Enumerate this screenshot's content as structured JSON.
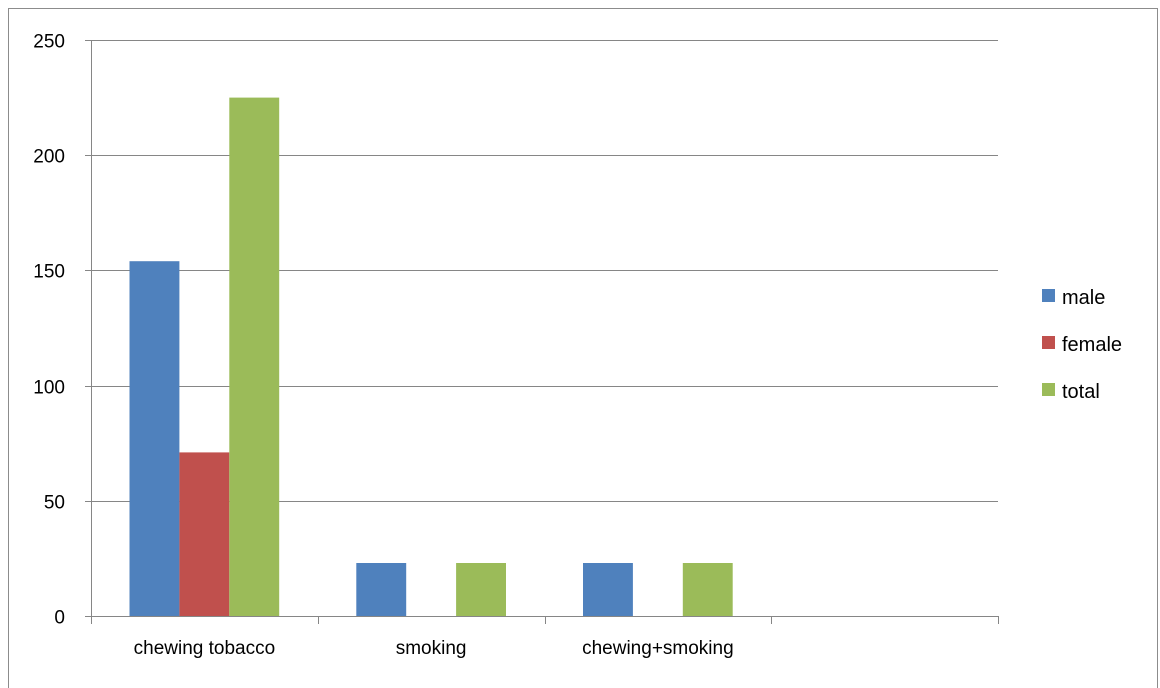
{
  "chart_data": {
    "type": "bar",
    "categories": [
      "chewing tobacco",
      "smoking",
      "chewing+smoking",
      ""
    ],
    "series": [
      {
        "name": "male",
        "color": "#4f81bd",
        "values": [
          154,
          23,
          23,
          0
        ]
      },
      {
        "name": "female",
        "color": "#c0504d",
        "values": [
          71,
          0,
          0,
          0
        ]
      },
      {
        "name": "total",
        "color": "#9bbb59",
        "values": [
          225,
          23,
          23,
          0
        ]
      }
    ],
    "ylim": [
      0,
      250
    ],
    "yticks": [
      0,
      50,
      100,
      150,
      200,
      250
    ],
    "grid": true,
    "legend_position": "right",
    "title": "",
    "xlabel": "",
    "ylabel": ""
  }
}
